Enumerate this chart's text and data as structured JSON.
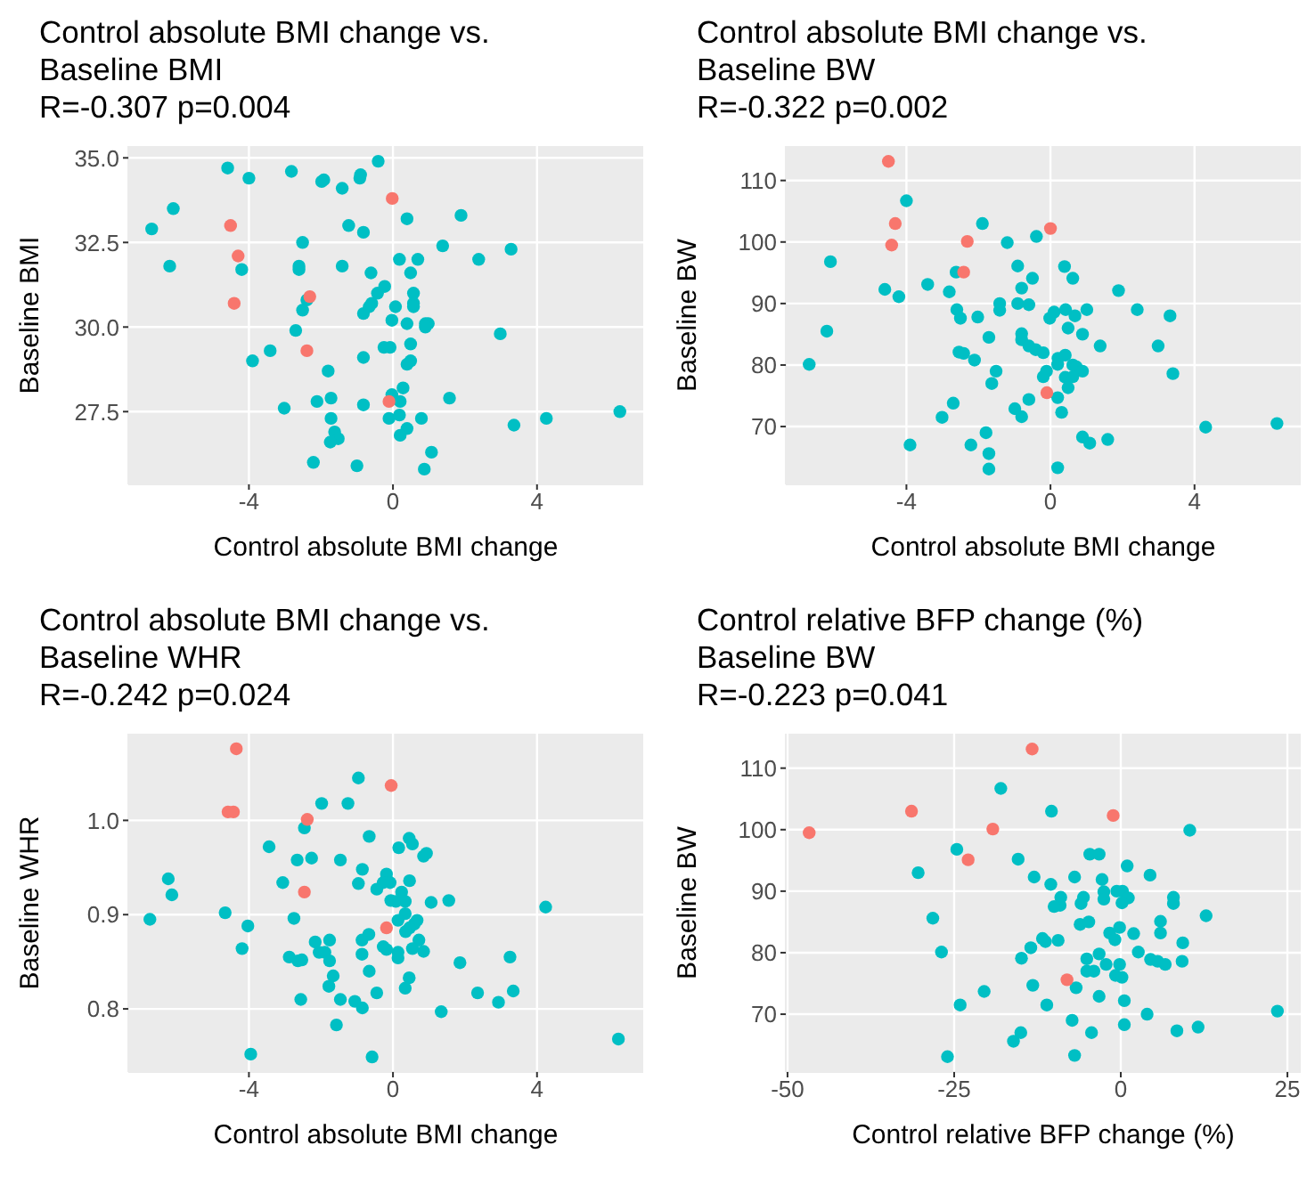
{
  "chart_data": [
    {
      "type": "scatter",
      "title": "Control absolute BMI change vs.\nBaseline BMI",
      "subtitle": "R=-0.307 p=0.004",
      "xlabel": "Control absolute BMI change",
      "ylabel": "Baseline BMI",
      "xlim": [
        -7.35,
        6.95
      ],
      "ylim": [
        25.35,
        35.35
      ],
      "xticks": [
        -4,
        0,
        4
      ],
      "yticks": [
        {
          "value": 27.5,
          "label": "27.5"
        },
        {
          "value": 30,
          "label": "30.0"
        },
        {
          "value": 32.5,
          "label": "32.5"
        },
        {
          "value": 35,
          "label": "35.0"
        }
      ],
      "grid": true,
      "marker": "circle",
      "series": [
        {
          "color": "#f8766d",
          "x": [
            -4.51,
            -4.3,
            -4.41,
            -2.31,
            -2.39,
            -0.02,
            -0.11
          ],
          "values": [
            33.0,
            32.1,
            30.7,
            30.9,
            29.3,
            33.8,
            27.8
          ]
        },
        {
          "color": "#00bfc4",
          "x": [
            -6.7,
            -6.1,
            -6.2,
            -4.59,
            -4.0,
            -2.82,
            -1.98,
            -1.92,
            -1.41,
            -0.92,
            -0.9,
            -0.41,
            -1.23,
            -0.82,
            0.39,
            1.89,
            -2.51,
            1.38,
            2.38,
            3.28,
            0.18,
            0.69,
            -4.2,
            -2.61,
            -2.61,
            -1.41,
            -0.61,
            0.49,
            -0.23,
            -0.43,
            0.57,
            -2.39,
            -2.51,
            -0.59,
            -0.66,
            -0.82,
            0.07,
            0.57,
            0.57,
            -0.03,
            0.39,
            0.9,
            0.98,
            0.9,
            2.98,
            -2.7,
            -3.41,
            -3.9,
            -0.82,
            -0.25,
            -0.08,
            0.49,
            0.49,
            0.39,
            -1.8,
            0.28,
            -0.03,
            0.2,
            1.57,
            -1.72,
            -2.11,
            -0.82,
            -3.02,
            -0.11,
            0.18,
            0.79,
            -1.72,
            4.26,
            3.36,
            -1.62,
            -1.52,
            -1.74,
            0.39,
            0.2,
            1.07,
            -2.21,
            -1.0,
            0.87,
            6.3
          ],
          "values": [
            32.9,
            33.5,
            31.8,
            34.7,
            34.4,
            34.6,
            34.3,
            34.35,
            34.1,
            34.4,
            34.5,
            34.9,
            33.0,
            32.8,
            33.2,
            33.3,
            32.5,
            32.4,
            32.0,
            32.3,
            32.0,
            32.0,
            31.7,
            31.8,
            31.7,
            31.8,
            31.6,
            31.6,
            31.2,
            31.0,
            31.0,
            30.8,
            30.5,
            30.7,
            30.6,
            30.4,
            30.6,
            30.7,
            30.6,
            30.2,
            30.1,
            30.1,
            30.1,
            30.0,
            29.8,
            29.9,
            29.3,
            29.0,
            29.1,
            29.4,
            29.4,
            29.5,
            29.0,
            28.9,
            28.7,
            28.2,
            28.0,
            27.8,
            27.9,
            27.9,
            27.8,
            27.7,
            27.6,
            27.3,
            27.4,
            27.3,
            27.3,
            27.3,
            27.1,
            26.9,
            26.7,
            26.6,
            27.0,
            26.8,
            26.3,
            26.0,
            25.9,
            25.8,
            27.5
          ]
        }
      ]
    },
    {
      "type": "scatter",
      "title": "Control absolute BMI change vs.\nBaseline BW",
      "subtitle": "R=-0.322 p=0.002",
      "xlabel": "Control absolute BMI change",
      "ylabel": "Baseline BW",
      "xlim": [
        -7.35,
        6.95
      ],
      "ylim": [
        60.6,
        115.6
      ],
      "xticks": [
        -4,
        0,
        4
      ],
      "yticks": [
        70,
        80,
        90,
        100,
        110
      ],
      "grid": true,
      "marker": "circle",
      "series": [
        {
          "color": "#f8766d",
          "x": [
            -4.5,
            -4.31,
            -4.41,
            -2.31,
            -2.41,
            0.0,
            -0.1
          ],
          "values": [
            113.1,
            103.0,
            99.5,
            100.1,
            95.1,
            102.2,
            75.5
          ]
        },
        {
          "color": "#00bfc4",
          "x": [
            -4.0,
            -6.11,
            -1.89,
            -1.2,
            -0.39,
            -4.6,
            -4.21,
            -3.41,
            -2.81,
            -2.62,
            -0.91,
            0.39,
            0.62,
            -0.5,
            -0.8,
            1.89,
            2.41,
            3.32,
            -2.6,
            -2.5,
            -2.02,
            -1.41,
            -1.41,
            -0.91,
            -0.6,
            0.1,
            -0.02,
            0.42,
            0.68,
            1.01,
            0.49,
            0.89,
            1.38,
            2.99,
            3.4,
            -0.8,
            -0.8,
            -1.71,
            -0.6,
            -0.41,
            -0.2,
            -2.54,
            -2.41,
            -2.11,
            0.21,
            0.41,
            0.2,
            0.62,
            0.72,
            0.89,
            -0.11,
            -0.2,
            -1.51,
            0.41,
            0.62,
            0.49,
            -1.63,
            -2.7,
            -3.01,
            -0.99,
            -0.8,
            -0.6,
            0.2,
            0.31,
            -1.79,
            -2.21,
            -1.71,
            -1.71,
            0.2,
            0.89,
            1.09,
            1.59,
            -3.9,
            -6.21,
            -6.7,
            4.31,
            6.29
          ],
          "values": [
            106.7,
            96.8,
            103.0,
            99.9,
            100.9,
            92.3,
            91.1,
            93.1,
            91.9,
            95.1,
            96.1,
            96.0,
            94.1,
            94.1,
            92.5,
            92.1,
            89.0,
            88.0,
            89.0,
            87.6,
            87.8,
            90.0,
            88.9,
            90.0,
            89.8,
            88.6,
            87.6,
            89.0,
            88.0,
            89.0,
            86.0,
            85.0,
            83.1,
            83.1,
            78.6,
            85.1,
            84.1,
            84.5,
            83.1,
            82.5,
            82.0,
            82.1,
            81.9,
            80.8,
            81.1,
            81.6,
            80.1,
            80.0,
            79.7,
            79.0,
            79.0,
            78.1,
            79.0,
            78.0,
            78.1,
            76.3,
            77.0,
            73.8,
            71.5,
            72.9,
            71.6,
            74.4,
            74.7,
            72.3,
            69.0,
            67.0,
            65.6,
            63.1,
            63.3,
            68.3,
            67.3,
            67.9,
            67.0,
            85.5,
            80.1,
            69.9,
            70.5
          ]
        }
      ]
    },
    {
      "type": "scatter",
      "title": "Control absolute BMI change vs.\nBaseline WHR",
      "subtitle": "R=-0.242 p=0.024",
      "xlabel": "Control absolute BMI change",
      "ylabel": "Baseline WHR",
      "xlim": [
        -7.35,
        6.95
      ],
      "ylim": [
        0.733,
        1.092
      ],
      "xticks": [
        -4,
        0,
        4
      ],
      "yticks": [
        {
          "value": 0.8,
          "label": "0.8"
        },
        {
          "value": 0.9,
          "label": "0.9"
        },
        {
          "value": 1,
          "label": "1.0"
        }
      ],
      "grid": true,
      "marker": "circle",
      "series": [
        {
          "color": "#f8766d",
          "x": [
            -4.35,
            -4.58,
            -4.43,
            -2.38,
            -2.46,
            -0.05,
            -0.18
          ],
          "values": [
            1.076,
            1.009,
            1.009,
            1.001,
            0.924,
            1.037,
            0.886
          ]
        },
        {
          "color": "#00bfc4",
          "x": [
            -0.96,
            -1.98,
            -1.25,
            -2.46,
            -0.66,
            0.45,
            0.54,
            0.16,
            0.85,
            0.93,
            -3.44,
            -2.66,
            -2.26,
            -1.46,
            -0.85,
            -3.06,
            -0.96,
            -0.18,
            -0.27,
            -0.08,
            -0.45,
            0.46,
            0.24,
            -0.06,
            0.08,
            0.34,
            1.06,
            1.55,
            -6.24,
            -6.14,
            -6.75,
            -4.66,
            -4.03,
            -2.75,
            0.34,
            0.67,
            0.59,
            0.46,
            0.35,
            0.14,
            -4.19,
            4.24,
            -0.67,
            -0.86,
            -2.16,
            -1.76,
            -2.05,
            -1.89,
            -1.76,
            -2.88,
            -2.64,
            -2.53,
            -0.86,
            -0.27,
            -0.18,
            0.14,
            0.14,
            0.72,
            0.85,
            0.54,
            -0.66,
            -1.66,
            -1.78,
            0.45,
            0.34,
            1.86,
            3.25,
            -0.45,
            2.35,
            3.34,
            2.93,
            -2.56,
            -1.46,
            -1.06,
            -0.85,
            1.34,
            -1.57,
            -3.95,
            -0.58,
            6.26
          ],
          "values": [
            1.045,
            1.018,
            1.018,
            0.992,
            0.983,
            0.981,
            0.975,
            0.971,
            0.962,
            0.965,
            0.972,
            0.958,
            0.96,
            0.958,
            0.948,
            0.934,
            0.933,
            0.943,
            0.934,
            0.934,
            0.927,
            0.936,
            0.924,
            0.915,
            0.914,
            0.914,
            0.913,
            0.915,
            0.938,
            0.921,
            0.895,
            0.902,
            0.888,
            0.896,
            0.901,
            0.894,
            0.89,
            0.886,
            0.882,
            0.894,
            0.864,
            0.908,
            0.879,
            0.873,
            0.871,
            0.873,
            0.86,
            0.86,
            0.851,
            0.855,
            0.851,
            0.852,
            0.858,
            0.866,
            0.863,
            0.86,
            0.854,
            0.873,
            0.861,
            0.864,
            0.84,
            0.835,
            0.824,
            0.833,
            0.822,
            0.849,
            0.855,
            0.817,
            0.817,
            0.819,
            0.807,
            0.81,
            0.81,
            0.808,
            0.801,
            0.797,
            0.783,
            0.752,
            0.749,
            0.768
          ]
        }
      ]
    },
    {
      "type": "scatter",
      "title": "Control relative BFP change (%)\nBaseline BW",
      "subtitle": "R=-0.223 p=0.041",
      "xlabel": "Control relative BFP change (%)",
      "ylabel": "Baseline BW",
      "xlim": [
        -50.26,
        27.0
      ],
      "ylim": [
        60.6,
        115.6
      ],
      "xticks": [
        -50,
        -25,
        0,
        25
      ],
      "yticks": [
        70,
        80,
        90,
        100,
        110
      ],
      "grid": true,
      "marker": "circle",
      "series": [
        {
          "color": "#f8766d",
          "x": [
            -46.75,
            -31.4,
            -19.2,
            -22.9,
            -13.3,
            -1.14,
            -8.07
          ],
          "values": [
            99.5,
            103.0,
            100.1,
            95.1,
            113.1,
            102.3,
            75.6
          ]
        },
        {
          "color": "#00bfc4",
          "x": [
            -18.0,
            -10.4,
            10.35,
            -24.6,
            -30.4,
            -15.4,
            -13.0,
            -10.5,
            -4.65,
            -3.25,
            0.96,
            4.39,
            -6.93,
            -9.0,
            -9.1,
            -10.0,
            -5.6,
            -5.96,
            -2.81,
            -2.54,
            -2.54,
            -0.6,
            0.26,
            1.14,
            0.18,
            7.9,
            7.9,
            12.8,
            -6.1,
            -4.8,
            -28.2,
            5.96,
            5.96,
            -1.67,
            -0.88,
            -0.18,
            1.93,
            9.3,
            -11.75,
            -11.3,
            -9.4,
            -13.5,
            -26.9,
            -14.9,
            -3.25,
            -5.1,
            -2.2,
            2.63,
            4.47,
            5.53,
            6.67,
            9.2,
            -0.18,
            -5.1,
            -4.04,
            -0.79,
            0.18,
            -3.25,
            -6.7,
            -13.2,
            -20.5,
            -24.1,
            -11.1,
            0.53,
            3.95,
            -7.3,
            0.53,
            8.42,
            11.6,
            -4.39,
            -15.0,
            -16.1,
            -26.0,
            -6.93,
            23.5
          ],
          "values": [
            106.7,
            103.0,
            99.9,
            96.8,
            93.0,
            95.2,
            92.3,
            91.1,
            96.0,
            96.0,
            94.1,
            92.6,
            92.3,
            89.0,
            87.7,
            87.5,
            89.0,
            88.0,
            91.9,
            89.9,
            88.7,
            90.0,
            90.0,
            88.9,
            88.1,
            89.0,
            88.0,
            86.0,
            84.6,
            85.0,
            85.6,
            85.1,
            83.2,
            83.2,
            82.1,
            84.1,
            83.1,
            81.6,
            82.3,
            81.8,
            82.0,
            80.8,
            80.1,
            79.1,
            79.8,
            79.0,
            78.1,
            80.1,
            78.9,
            78.6,
            78.1,
            78.6,
            78.1,
            77.0,
            77.0,
            76.3,
            76.0,
            72.9,
            74.3,
            74.7,
            73.7,
            71.5,
            71.5,
            72.2,
            70.0,
            69.0,
            68.3,
            67.3,
            67.9,
            67.0,
            67.0,
            65.6,
            63.1,
            63.3,
            70.5
          ]
        }
      ]
    }
  ]
}
